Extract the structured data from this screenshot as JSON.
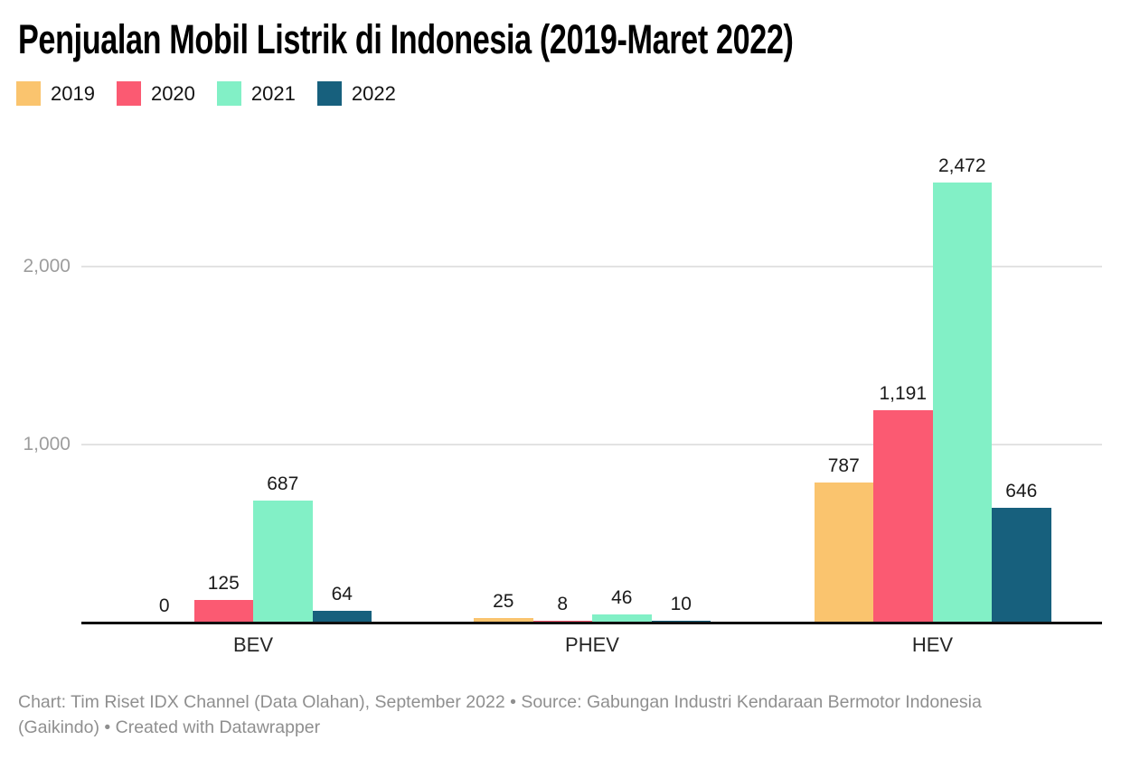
{
  "title": "Penjualan Mobil Listrik di Indonesia (2019-Maret 2022)",
  "legend": [
    {
      "label": "2019",
      "color": "#FAC46E"
    },
    {
      "label": "2020",
      "color": "#FB5A72"
    },
    {
      "label": "2021",
      "color": "#82F0C6"
    },
    {
      "label": "2022",
      "color": "#17607D"
    }
  ],
  "chart_data": {
    "type": "bar",
    "title": "Penjualan Mobil Listrik di Indonesia (2019-Maret 2022)",
    "categories": [
      "BEV",
      "PHEV",
      "HEV"
    ],
    "series": [
      {
        "name": "2019",
        "color": "#FAC46E",
        "values": [
          0,
          25,
          787
        ],
        "value_labels": [
          "0",
          "25",
          "787"
        ]
      },
      {
        "name": "2020",
        "color": "#FB5A72",
        "values": [
          125,
          8,
          1191
        ],
        "value_labels": [
          "125",
          "8",
          "1,191"
        ]
      },
      {
        "name": "2021",
        "color": "#82F0C6",
        "values": [
          687,
          46,
          2472
        ],
        "value_labels": [
          "687",
          "46",
          "2,472"
        ]
      },
      {
        "name": "2022",
        "color": "#17607D",
        "values": [
          64,
          10,
          646
        ],
        "value_labels": [
          "64",
          "10",
          "646"
        ]
      }
    ],
    "y_ticks": [
      {
        "value": 1000,
        "label": "1,000"
      },
      {
        "value": 2000,
        "label": "2,000"
      }
    ],
    "ylim": [
      0,
      2550
    ],
    "grid": true,
    "legend_position": "top-left",
    "xlabel": "",
    "ylabel": ""
  },
  "footer": {
    "lines": [
      "Chart: Tim Riset IDX Channel (Data Olahan), September 2022 • Source: Gabungan Industri Kendaraan Bermotor Indonesia",
      "(Gaikindo) • Created with Datawrapper"
    ]
  }
}
